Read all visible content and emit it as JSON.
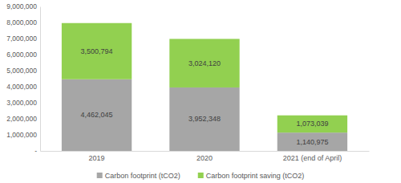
{
  "chart_data": {
    "type": "bar",
    "stacked": true,
    "data_labels": true,
    "legend": "bottom",
    "grid": false,
    "categories": [
      "2019",
      "2020",
      "2021 (end of April)"
    ],
    "series": [
      {
        "name": "Carbon footprint (tCO2)",
        "color": "#a6a6a6",
        "values": [
          4462045,
          3952348,
          1140975
        ],
        "value_labels": [
          "4,462,045",
          "3,952,348",
          "1,140,975"
        ]
      },
      {
        "name": "Carbon footprint saving (tCO2)",
        "color": "#92d050",
        "values": [
          3500794,
          3024120,
          1073039
        ],
        "value_labels": [
          "3,500,794",
          "3,024,120",
          "1,073,039"
        ]
      }
    ],
    "ylim": [
      0,
      9000000
    ],
    "yticks": [
      {
        "value": 0,
        "label": "-"
      },
      {
        "value": 1000000,
        "label": "1,000,000"
      },
      {
        "value": 2000000,
        "label": "2,000,000"
      },
      {
        "value": 3000000,
        "label": "3,000,000"
      },
      {
        "value": 4000000,
        "label": "4,000,000"
      },
      {
        "value": 5000000,
        "label": "5,000,000"
      },
      {
        "value": 6000000,
        "label": "6,000,000"
      },
      {
        "value": 7000000,
        "label": "7,000,000"
      },
      {
        "value": 8000000,
        "label": "8,000,000"
      },
      {
        "value": 9000000,
        "label": "9,000,000"
      }
    ]
  }
}
